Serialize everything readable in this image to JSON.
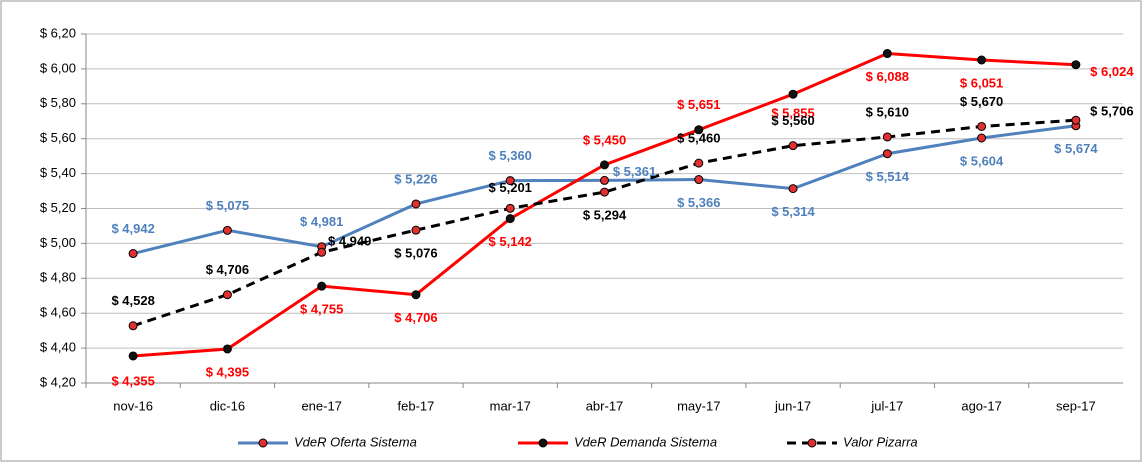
{
  "chart_data": {
    "type": "line",
    "categories": [
      "nov-16",
      "dic-16",
      "ene-17",
      "feb-17",
      "mar-17",
      "abr-17",
      "may-17",
      "jun-17",
      "jul-17",
      "ago-17",
      "sep-17"
    ],
    "series": [
      {
        "name": "VdeR Oferta Sistema",
        "color": "#4f81bd",
        "marker_color": "#e03030",
        "linestyle": "solid",
        "values": [
          4.942,
          5.075,
          4.981,
          5.226,
          5.36,
          5.361,
          5.366,
          5.314,
          5.514,
          5.604,
          5.674
        ],
        "value_labels": [
          "$ 4,942",
          "$ 5,075",
          "$ 4,981",
          "$ 5,226",
          "$ 5,360",
          "$ 5,361",
          "$ 5,366",
          "$ 5,314",
          "$ 5,514",
          "$ 5,604",
          "$ 5,674"
        ]
      },
      {
        "name": "VdeR Demanda Sistema",
        "color": "#ff0000",
        "marker_color": "#111111",
        "linestyle": "solid",
        "values": [
          4.355,
          4.395,
          4.755,
          4.706,
          5.142,
          5.45,
          5.651,
          5.855,
          6.088,
          6.051,
          6.024
        ],
        "value_labels": [
          "$ 4,355",
          "$ 4,395",
          "$ 4,755",
          "$ 4,706",
          "$ 5,142",
          "$ 5,450",
          "$ 5,651",
          "$ 5,855",
          "$ 6,088",
          "$ 6,051",
          "$ 6,024"
        ]
      },
      {
        "name": "Valor Pizarra",
        "color": "#000000",
        "marker_color": "#e03030",
        "linestyle": "dashed",
        "values": [
          4.528,
          4.706,
          4.949,
          5.076,
          5.201,
          5.294,
          5.46,
          5.56,
          5.61,
          5.67,
          5.706
        ],
        "value_labels": [
          "$ 4,528",
          "$ 4,706",
          "$ 4,949",
          "$ 5,076",
          "$ 5,201",
          "$ 5,294",
          "$ 5,460",
          "$ 5,560",
          "$ 5,610",
          "$ 5,670",
          "$ 5,706"
        ]
      }
    ],
    "ylim": [
      4.2,
      6.2
    ],
    "yticks": [
      {
        "value": 4.2,
        "label": "$ 4,20"
      },
      {
        "value": 4.4,
        "label": "$ 4,40"
      },
      {
        "value": 4.6,
        "label": "$ 4,60"
      },
      {
        "value": 4.8,
        "label": "$ 4,80"
      },
      {
        "value": 5.0,
        "label": "$ 5,00"
      },
      {
        "value": 5.2,
        "label": "$ 5,20"
      },
      {
        "value": 5.4,
        "label": "$ 5,40"
      },
      {
        "value": 5.6,
        "label": "$ 5,60"
      },
      {
        "value": 5.8,
        "label": "$ 5,80"
      },
      {
        "value": 6.0,
        "label": "$ 6,00"
      },
      {
        "value": 6.2,
        "label": "$ 6,20"
      }
    ],
    "grid": true,
    "legend": "bottom"
  }
}
